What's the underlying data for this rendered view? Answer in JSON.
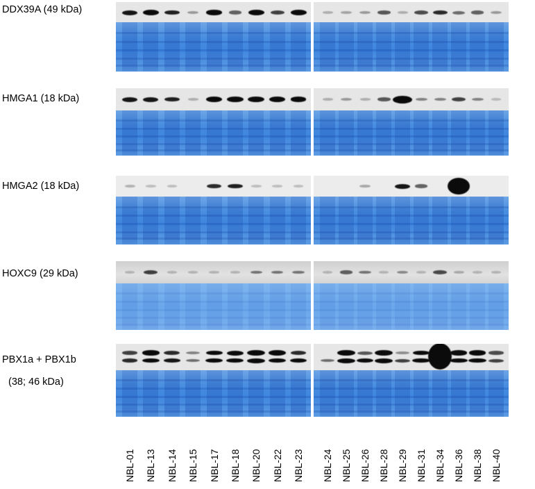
{
  "rows": [
    {
      "id": "ddx39a",
      "label_lines": [
        "DDX39A (49 kDa)"
      ]
    },
    {
      "id": "hmga1",
      "label_lines": [
        "HMGA1 (18 kDa)"
      ]
    },
    {
      "id": "hmga2",
      "label_lines": [
        "HMGA2 (18 kDa)"
      ]
    },
    {
      "id": "hoxc9",
      "label_lines": [
        "HOXC9 (29 kDa)"
      ]
    },
    {
      "id": "pbx1",
      "label_lines": [
        "PBX1a + PBX1b",
        "(38; 46 kDa)"
      ]
    }
  ],
  "lanes": {
    "left": [
      "NBL-01",
      "NBL-13",
      "NBL-14",
      "NBL-15",
      "NBL-17",
      "NBL-18",
      "NBL-20",
      "NBL-22",
      "NBL-23"
    ],
    "right": [
      "NBL-24",
      "NBL-25",
      "NBL-26",
      "NBL-28",
      "NBL-29",
      "NBL-31",
      "NBL-34",
      "NBL-36",
      "NBL-38",
      "NBL-40"
    ]
  },
  "band_intensity": {
    "ddx39a": {
      "left": [
        0.8,
        0.95,
        0.75,
        0.2,
        0.85,
        0.45,
        0.95,
        0.6,
        0.9
      ],
      "right": [
        0.1,
        0.15,
        0.2,
        0.5,
        0.1,
        0.55,
        0.7,
        0.4,
        0.45,
        0.2
      ]
    },
    "hmga1": {
      "left": [
        0.8,
        0.8,
        0.75,
        0.1,
        0.95,
        0.95,
        1.0,
        0.95,
        0.85
      ],
      "right": [
        0.1,
        0.2,
        0.1,
        0.5,
        1.0,
        0.3,
        0.3,
        0.6,
        0.3,
        0.05
      ]
    },
    "hmga2": {
      "left": [
        0.1,
        0.05,
        0.05,
        0.0,
        0.7,
        0.75,
        0.05,
        0.05,
        0.05
      ],
      "right": [
        0.0,
        0.0,
        0.15,
        0.0,
        0.8,
        0.45,
        0.0,
        1.0,
        0.0,
        0.0
      ]
    },
    "hoxc9": {
      "left": [
        0.05,
        0.6,
        0.05,
        0.05,
        0.05,
        0.05,
        0.35,
        0.35,
        0.35
      ],
      "right": [
        0.05,
        0.45,
        0.35,
        0.05,
        0.25,
        0.05,
        0.55,
        0.1,
        0.05,
        0.05
      ]
    },
    "pbx1_upper": {
      "left": [
        0.5,
        0.85,
        0.6,
        0.2,
        0.75,
        0.8,
        1.0,
        0.95,
        0.6
      ],
      "right": [
        0.0,
        0.9,
        0.4,
        1.0,
        0.15,
        0.75,
        1.0,
        0.85,
        0.85,
        0.45
      ]
    },
    "pbx1_lower": {
      "left": [
        0.6,
        0.85,
        0.7,
        0.3,
        0.85,
        0.85,
        1.0,
        0.95,
        0.85
      ],
      "right": [
        0.3,
        1.0,
        0.8,
        1.0,
        0.5,
        0.9,
        1.0,
        0.9,
        0.9,
        0.5
      ]
    }
  }
}
